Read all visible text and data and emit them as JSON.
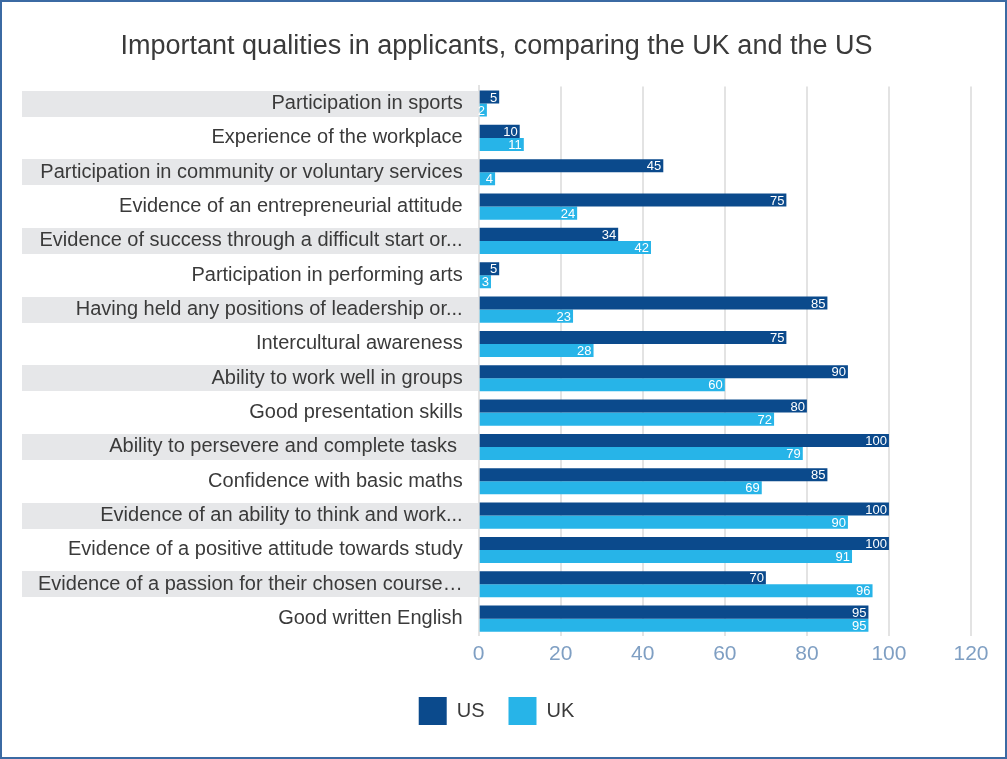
{
  "chart_data": {
    "type": "bar",
    "orientation": "horizontal",
    "title": "Important qualities in applicants, comparing the UK and the US",
    "categories": [
      "Participation in sports",
      "Experience of the workplace",
      "Participation in community or voluntary services",
      "Evidence of an entrepreneurial attitude",
      "Evidence of success through a difficult start or...",
      "Participation in performing arts",
      "Having held any positions of leadership or...",
      "Intercultural awareness",
      "Ability to work well in groups",
      "Good presentation skills",
      "Ability to persevere and complete tasks ",
      "Confidence with basic maths",
      "Evidence of an ability to think and work...",
      "Evidence of a positive attitude towards study",
      "Evidence of a passion for their chosen course…",
      "Good written English"
    ],
    "series": [
      {
        "name": "US",
        "color": "#0b4a8c",
        "values": [
          5,
          10,
          45,
          75,
          34,
          5,
          85,
          75,
          90,
          80,
          100,
          85,
          100,
          100,
          70,
          95
        ]
      },
      {
        "name": "UK",
        "color": "#27b4e8",
        "values": [
          2,
          11,
          4,
          24,
          42,
          3,
          23,
          28,
          60,
          72,
          79,
          69,
          90,
          91,
          96,
          95
        ]
      }
    ],
    "xlim": [
      0,
      120
    ],
    "xticks": [
      0,
      20,
      40,
      60,
      80,
      100,
      120
    ],
    "grid": "x",
    "legend": "bottom",
    "data_labels": true
  }
}
